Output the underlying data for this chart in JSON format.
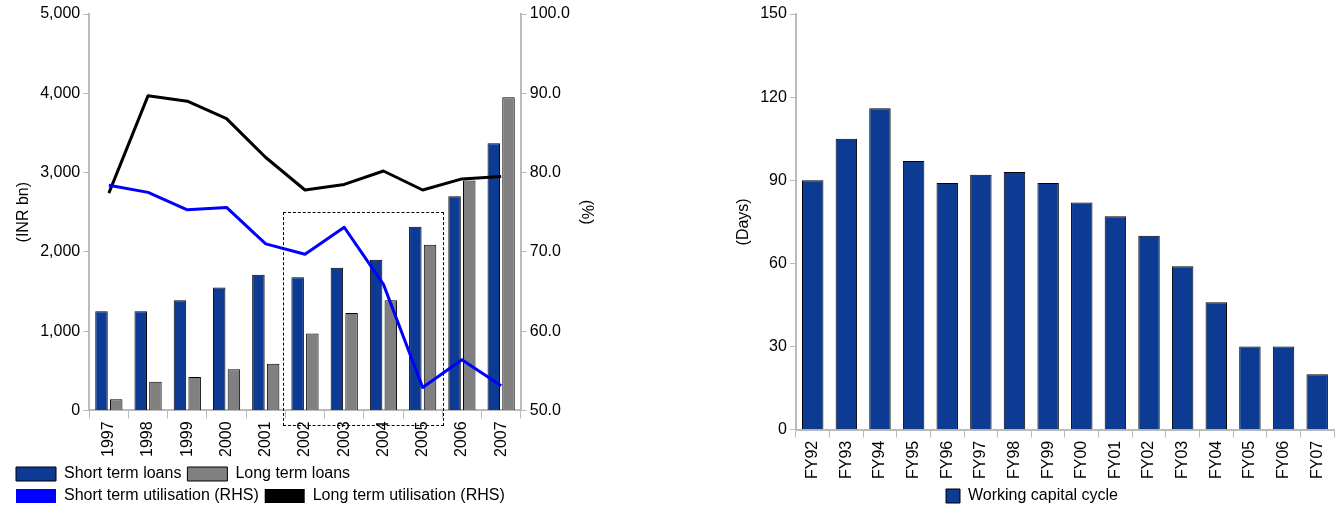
{
  "chart_data": [
    {
      "type": "bar",
      "categories": [
        "1997",
        "1998",
        "1999",
        "2000",
        "2001",
        "2002",
        "2003",
        "2004",
        "2005",
        "2006",
        "2007"
      ],
      "series": [
        {
          "name": "Short term loans",
          "color": "#0d3b94",
          "values": [
            1250,
            1250,
            1390,
            1550,
            1710,
            1680,
            1800,
            1900,
            2315,
            2700,
            3370
          ]
        },
        {
          "name": "Long term loans",
          "color": "#808080",
          "values": [
            140,
            360,
            420,
            520,
            590,
            970,
            1230,
            1390,
            2090,
            2900,
            3950
          ]
        },
        {
          "name": "Short term utilisation (RHS)",
          "type": "line",
          "axis": "y2",
          "color": "#0000ff",
          "values": [
            78.4,
            77.5,
            75.3,
            75.6,
            71.0,
            69.7,
            73.1,
            65.9,
            52.9,
            56.4,
            53.1
          ]
        },
        {
          "name": "Long term utilisation (RHS)",
          "type": "line",
          "axis": "y2",
          "color": "#000000",
          "values": [
            77.4,
            89.7,
            89.0,
            86.8,
            81.9,
            77.8,
            78.5,
            80.2,
            77.8,
            79.2,
            79.5
          ]
        }
      ],
      "ylabel": "(INR bn)",
      "y2label": "(%)",
      "ylim": [
        0,
        5000
      ],
      "yticks": [
        0,
        {
          "value": 1000,
          "label": "1,000"
        },
        {
          "value": 2000,
          "label": "2,000"
        },
        {
          "value": 3000,
          "label": "3,000"
        },
        {
          "value": 4000,
          "label": "4,000"
        },
        {
          "value": 5000,
          "label": "5,000"
        }
      ],
      "y2lim": [
        50,
        100
      ],
      "y2ticks": [
        {
          "value": 50,
          "label": "50.0"
        },
        {
          "value": 60,
          "label": "60.0"
        },
        {
          "value": 70,
          "label": "70.0"
        },
        {
          "value": 80,
          "label": "80.0"
        },
        {
          "value": 90,
          "label": "90.0"
        },
        {
          "value": 100,
          "label": "100.0"
        }
      ],
      "grid": false,
      "legend": "bottom",
      "marker": "none",
      "line_style": "solid"
    },
    {
      "type": "bar",
      "categories": [
        "FY92",
        "FY93",
        "FY94",
        "FY95",
        "FY96",
        "FY97",
        "FY98",
        "FY99",
        "FY00",
        "FY01",
        "FY02",
        "FY03",
        "FY04",
        "FY05",
        "FY06",
        "FY07"
      ],
      "series": [
        {
          "name": "Working capital cycle",
          "color": "#0d3b94",
          "values": [
            90,
            105,
            116,
            97,
            89,
            92,
            93,
            89,
            82,
            77,
            70,
            59,
            46,
            30,
            30,
            20
          ]
        }
      ],
      "ylabel": "(Days)",
      "ylim": [
        0,
        150
      ],
      "yticks": [
        0,
        30,
        60,
        90,
        120,
        150
      ],
      "grid": false,
      "legend": "bottom"
    }
  ]
}
